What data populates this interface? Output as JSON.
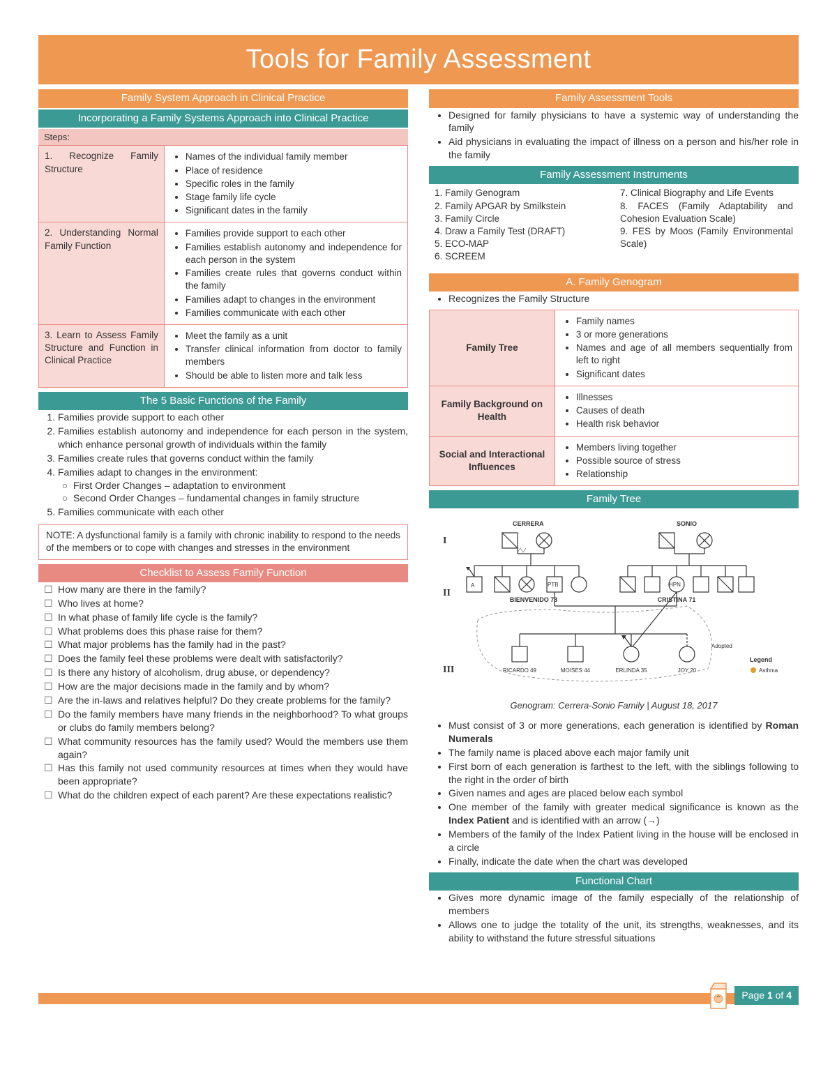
{
  "colors": {
    "orange": "#ef9852",
    "teal": "#3c9a95",
    "salmon": "#e88a82",
    "pink": "#f8d9d6"
  },
  "title": "Tools for Family Assessment",
  "left": {
    "h1": "Family System Approach in Clinical Practice",
    "h2": "Incorporating a Family Systems Approach into Clinical Practice",
    "stepsLabel": "Steps:",
    "steps": [
      {
        "label": "1. Recognize Family Structure",
        "items": [
          "Names of the individual family member",
          "Place of residence",
          "Specific roles in the family",
          "Stage family life cycle",
          "Significant dates in the family"
        ]
      },
      {
        "label": "2. Understanding Normal Family Function",
        "items": [
          "Families provide support to each other",
          "Families establish autonomy and independence for each person in the system",
          "Families create rules that governs conduct within the family",
          "Families adapt to changes in the environment",
          "Families communicate with each other"
        ]
      },
      {
        "label": "3. Learn to Assess Family Structure and Function in Clinical Practice",
        "items": [
          "Meet the family as a unit",
          "Transfer clinical information from doctor to family members",
          "Should be able to listen more and talk less"
        ]
      }
    ],
    "fiveFuncTitle": "The 5 Basic Functions of the Family",
    "fiveFunc": [
      "Families provide support to each other",
      "Families establish autonomy and independence for each person in the system, which enhance personal growth of individuals within the family",
      "Families create rules that governs conduct within the family",
      "Families adapt to changes in the environment:",
      "Families communicate with each other"
    ],
    "fiveFuncSub": [
      "First Order Changes – adaptation to environment",
      "Second Order Changes – fundamental changes in family structure"
    ],
    "note": "NOTE: A dysfunctional family is a family with chronic inability to respond to the needs of the members or to cope with changes and stresses in the environment",
    "checklistTitle": "Checklist to Assess Family Function",
    "checklist": [
      "How many are there in the family?",
      "Who lives at home?",
      "In what phase of family life cycle is the family?",
      "What problems does this phase raise for them?",
      "What major problems has the family had in the past?",
      "Does the family feel these problems were dealt with satisfactorily?",
      "Is there any history of alcoholism, drug abuse, or dependency?",
      "How are the major decisions made in the family and by whom?",
      "Are the in-laws and relatives helpful? Do they create problems for the family?",
      "Do the family members have many friends in the neighborhood? To what groups or clubs do family members belong?",
      "What community resources has the family used? Would the members use them again?",
      "Has this family not used community resources at times when they would have been appropriate?",
      "What do the children expect of each parent? Are these expectations realistic?"
    ]
  },
  "right": {
    "h1": "Family Assessment Tools",
    "intro": [
      "Designed for family physicians to have a systemic way of understanding the family",
      "Aid physicians in evaluating the impact of illness on a person and his/her role in the family"
    ],
    "instrumentsTitle": "Family Assessment Instruments",
    "instrumentsLeft": [
      "1. Family Genogram",
      "2. Family APGAR by Smilkstein",
      "3. Family Circle",
      "4. Draw a Family Test (DRAFT)",
      "5. ECO-MAP",
      "6. SCREEM"
    ],
    "instrumentsRight": [
      "7. Clinical Biography and Life Events",
      "8. FACES (Family Adaptability and Cohesion Evaluation Scale)",
      "9. FES by Moos (Family Environmental Scale)"
    ],
    "genoTitle": "A. Family Genogram",
    "genoIntro": "Recognizes the Family Structure",
    "genoRows": [
      {
        "label": "Family Tree",
        "items": [
          "Family names",
          "3 or more generations",
          "Names and age of all members sequentially from left to right",
          "Significant dates"
        ]
      },
      {
        "label": "Family Background on Health",
        "items": [
          "Illnesses",
          "Causes of death",
          "Health risk behavior"
        ]
      },
      {
        "label": "Social and Interactional Influences",
        "items": [
          "Members living together",
          "Possible source of stress",
          "Relationship"
        ]
      }
    ],
    "treeTitle": "Family Tree",
    "genogram": {
      "family1": "CERRERA",
      "family2": "SONIO",
      "roman": [
        "I",
        "II",
        "III"
      ],
      "nameB": "BIENVENIDO 73",
      "nameC": "CRISTINA 71",
      "children": [
        "RICARDO 49",
        "MOISES 44",
        "ERLINDA 35",
        "JOY 20"
      ],
      "adopted": "Adopted",
      "legend": "Legend",
      "asthma": "Asthma",
      "ptb": "PTB",
      "hpn": "HPN",
      "a": "A"
    },
    "caption": "Genogram: Cerrera-Sonio Family | August 18, 2017",
    "treeBullets": [
      "Must consist of 3 or more generations, each generation is identified by <b>Roman Numerals</b>",
      "The family name is placed above each major family unit",
      "First born of each generation is farthest to the left, with the siblings following to the right in the order of birth",
      "Given names and ages are placed below each symbol",
      "One member of the family with greater medical significance is known as the <b>Index Patient</b> and is identified with an arrow (→)",
      "Members of the family of the Index Patient living in the house will be enclosed in a circle",
      "Finally, indicate the date when the chart was developed"
    ],
    "funcChartTitle": "Functional Chart",
    "funcChart": [
      "Gives more dynamic image of the family especially of the relationship of members",
      "Allows one to judge the totality of the unit, its strengths, weaknesses, and its ability to withstand the future stressful situations"
    ]
  },
  "footer": {
    "page": "1",
    "total": "4",
    "pageWord": "Page",
    "ofWord": "of"
  }
}
